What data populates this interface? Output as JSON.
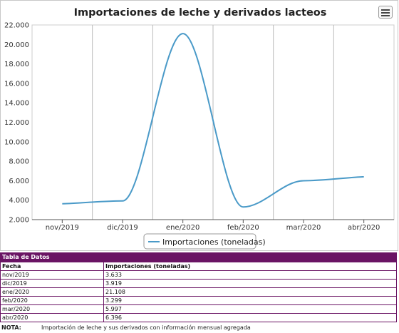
{
  "chart_data": {
    "type": "line",
    "title": "Importaciones de leche y derivados lacteos",
    "categories": [
      "nov/2019",
      "dic/2019",
      "ene/2020",
      "feb/2020",
      "mar/2020",
      "abr/2020"
    ],
    "series": [
      {
        "name": "Importaciones (toneladas)",
        "values": [
          3633,
          3919,
          21108,
          3299,
          5997,
          6396
        ],
        "color": "#4a9ac8"
      }
    ],
    "y_ticks": [
      "2.000",
      "4.000",
      "6.000",
      "8.000",
      "10.000",
      "12.000",
      "14.000",
      "16.000",
      "18.000",
      "20.000",
      "22.000"
    ],
    "ylim": [
      2000,
      22000
    ],
    "grid": "vertical",
    "legend": "bottom-center"
  },
  "menu": {
    "icon": "hamburger-icon"
  },
  "table": {
    "caption": "Tabla de Datos",
    "headers": [
      "Fecha",
      "Importaciones (toneladas)"
    ],
    "rows": [
      [
        "nov/2019",
        "3.633"
      ],
      [
        "dic/2019",
        "3.919"
      ],
      [
        "ene/2020",
        "21.108"
      ],
      [
        "feb/2020",
        "3.299"
      ],
      [
        "mar/2020",
        "5.997"
      ],
      [
        "abr/2020",
        "6.396"
      ]
    ]
  },
  "note": {
    "label": "NOTA:",
    "text": "Importación de leche y sus derivados con información mensual agregada"
  }
}
